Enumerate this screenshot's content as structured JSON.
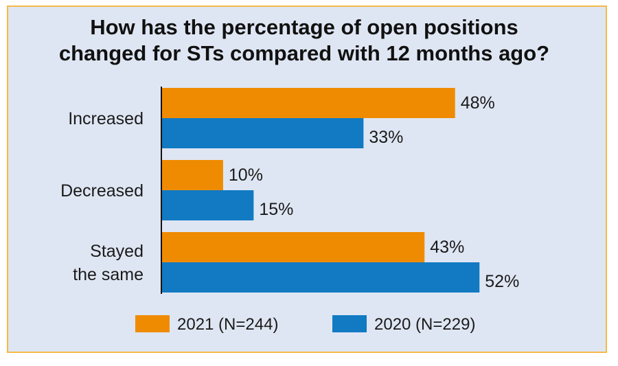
{
  "chart_data": {
    "type": "bar",
    "orientation": "horizontal",
    "title_lines": [
      "How has the percentage of open positions",
      "changed for STs compared with 12 months ago?"
    ],
    "categories": [
      {
        "lines": [
          "Increased"
        ]
      },
      {
        "lines": [
          "Decreased"
        ]
      },
      {
        "lines": [
          "Stayed",
          "the same"
        ]
      }
    ],
    "series": [
      {
        "name": "2021 (N=244)",
        "color": "#ef8b00",
        "values": [
          48,
          10,
          43
        ],
        "labels": [
          "48%",
          "10%",
          "43%"
        ]
      },
      {
        "name": "2020 (N=229)",
        "color": "#117ac3",
        "values": [
          33,
          15,
          52
        ],
        "labels": [
          "33%",
          "15%",
          "52%"
        ]
      }
    ],
    "xlim": [
      0,
      100
    ],
    "grid": false,
    "legend_position": "bottom"
  }
}
